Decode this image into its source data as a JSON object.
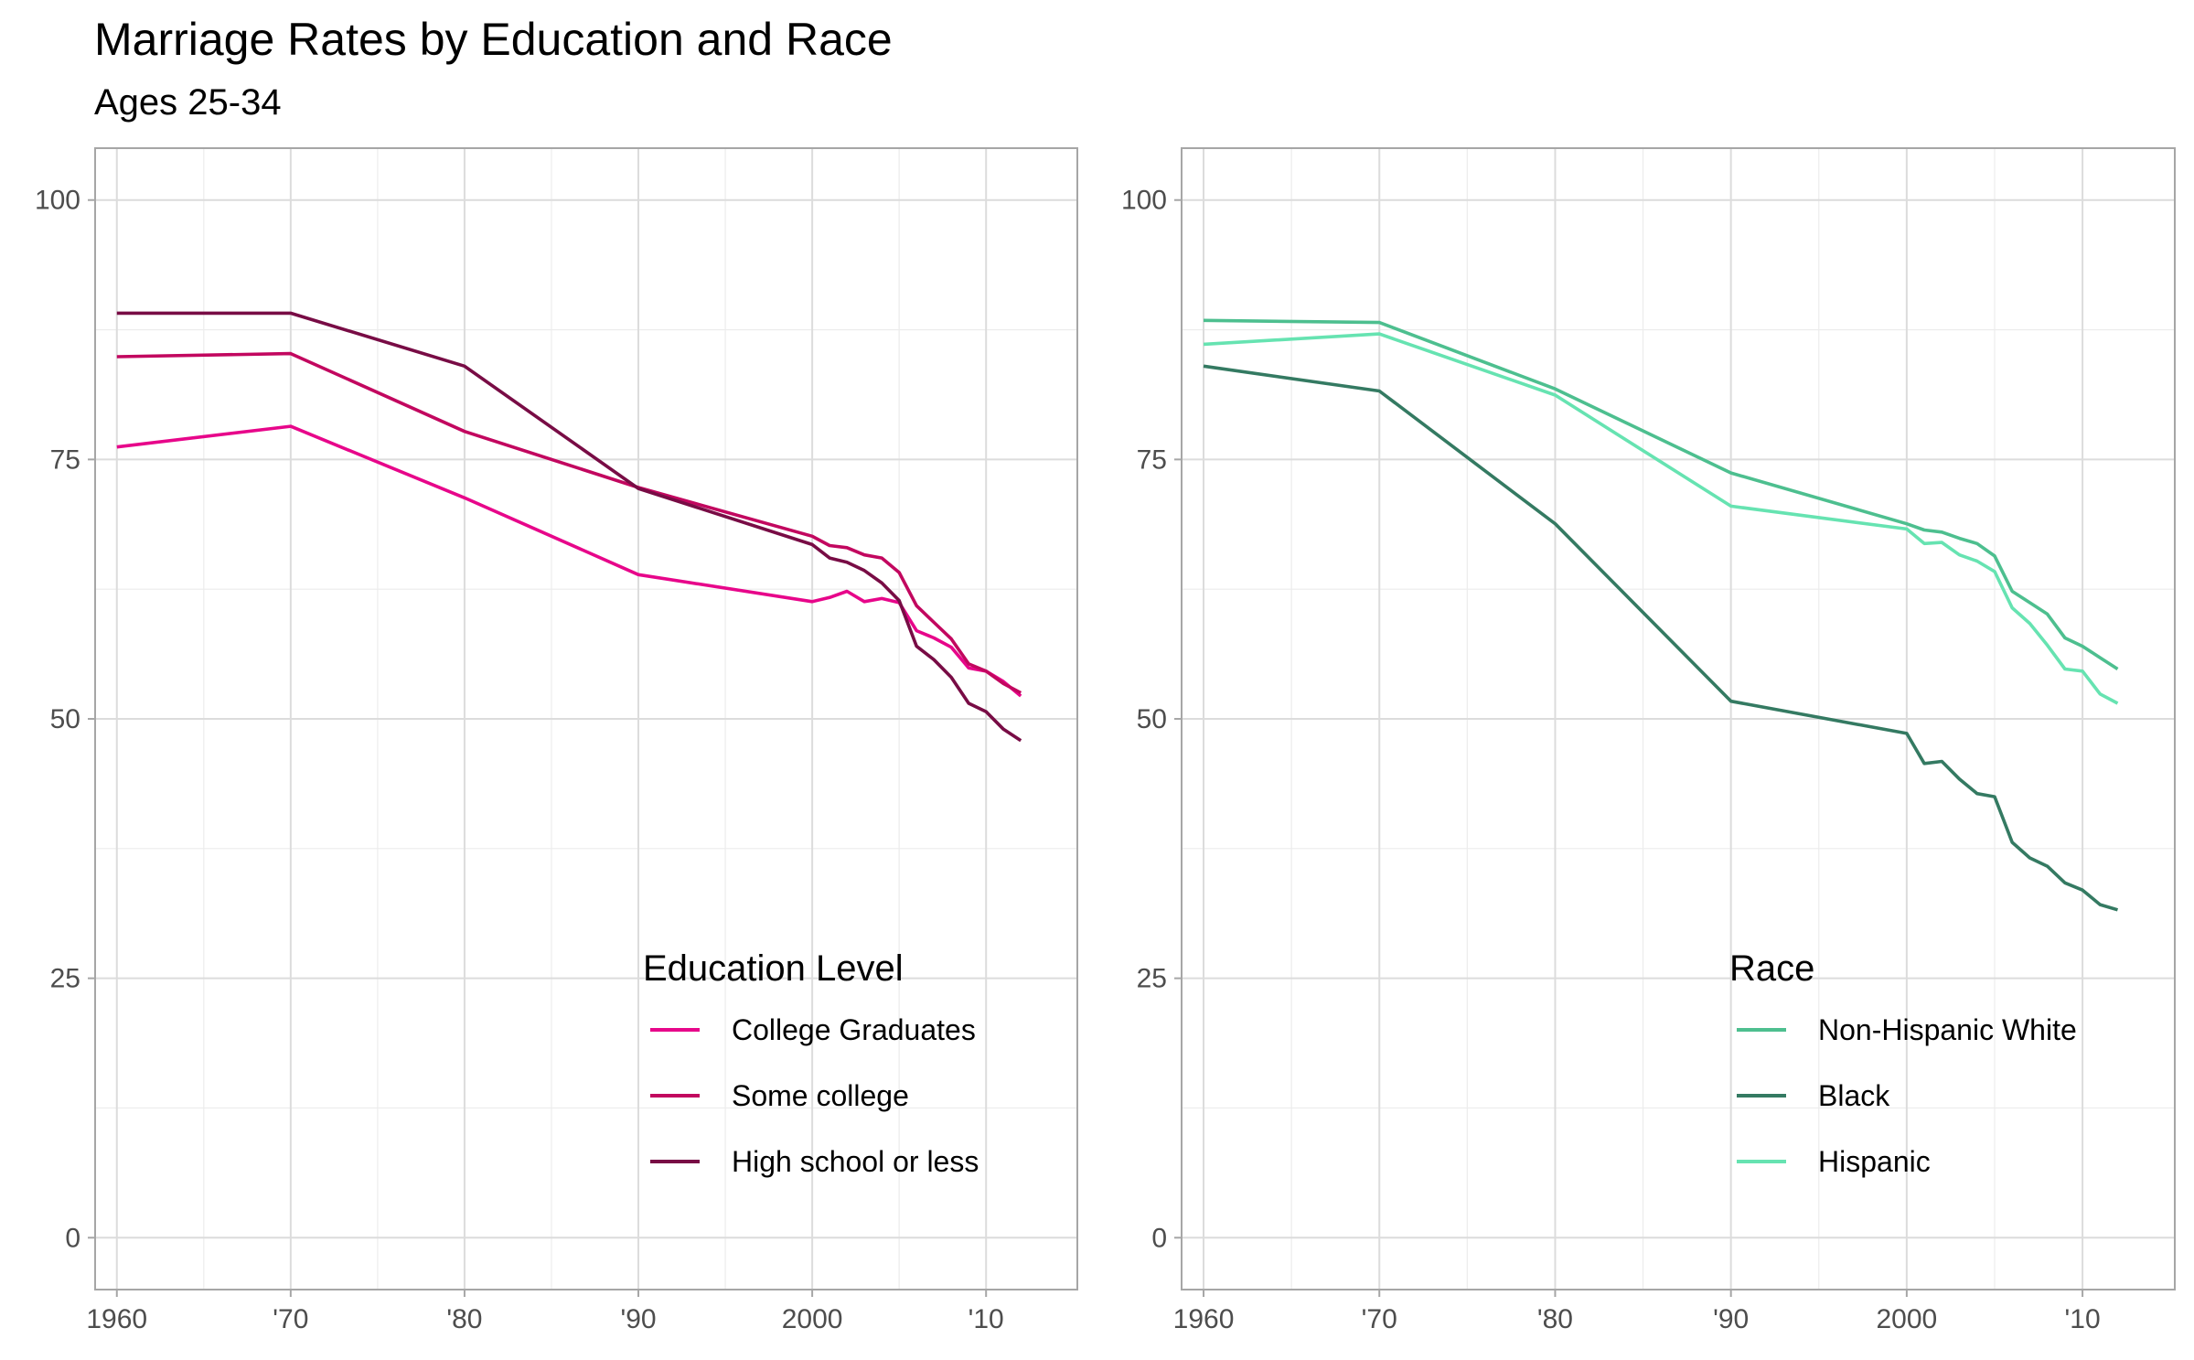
{
  "title": "Marriage Rates by Education and Race",
  "subtitle": "Ages 25-34",
  "colors": {
    "grid_major": "#dcdcdc",
    "grid_minor": "#ececec",
    "panel_border": "#a6a6a6",
    "tick_label": "#4d4d4d"
  },
  "chart_data": [
    {
      "type": "line",
      "panel": "left",
      "xlim": [
        1958.75,
        2015.25
      ],
      "ylim": [
        -5,
        105
      ],
      "x_major_ticks": [
        1960,
        1970,
        1980,
        1990,
        2000,
        2010
      ],
      "x_tick_labels": [
        "1960",
        "'70",
        "'80",
        "'90",
        "2000",
        "'10"
      ],
      "y_major_ticks": [
        0,
        25,
        50,
        75,
        100
      ],
      "y_tick_labels": [
        "0",
        "25",
        "50",
        "75",
        "100"
      ],
      "grid": true,
      "legend_title": "Education Level",
      "legend_position": "bottom-right",
      "series": [
        {
          "name": "College Graduates",
          "color": "#e7068a",
          "x": [
            1960,
            1970,
            1980,
            1990,
            2000,
            2001,
            2002,
            2003,
            2004,
            2005,
            2006,
            2007,
            2008,
            2009,
            2010,
            2011,
            2012
          ],
          "values": [
            76.2,
            78.2,
            71.3,
            63.9,
            61.3,
            61.7,
            62.3,
            61.3,
            61.6,
            61.2,
            58.5,
            57.8,
            56.9,
            54.9,
            54.6,
            53.6,
            52.2
          ]
        },
        {
          "name": "Some college",
          "color": "#c2075f",
          "x": [
            1960,
            1970,
            1980,
            1990,
            2000,
            2001,
            2002,
            2003,
            2004,
            2005,
            2006,
            2007,
            2008,
            2009,
            2010,
            2011,
            2012
          ],
          "values": [
            84.9,
            85.2,
            77.7,
            72.3,
            67.6,
            66.7,
            66.5,
            65.8,
            65.5,
            64.1,
            60.9,
            59.3,
            57.7,
            55.3,
            54.6,
            53.4,
            52.5
          ]
        },
        {
          "name": "High school or less",
          "color": "#780c45",
          "x": [
            1960,
            1970,
            1980,
            1990,
            2000,
            2001,
            2002,
            2003,
            2004,
            2005,
            2006,
            2007,
            2008,
            2009,
            2010,
            2011,
            2012
          ],
          "values": [
            89.1,
            89.1,
            84.0,
            72.2,
            66.8,
            65.5,
            65.1,
            64.3,
            63.1,
            61.4,
            57.0,
            55.7,
            54.0,
            51.5,
            50.7,
            49.0,
            47.9
          ]
        }
      ]
    },
    {
      "type": "line",
      "panel": "right",
      "xlim": [
        1958.75,
        2015.25
      ],
      "ylim": [
        -5,
        105
      ],
      "x_major_ticks": [
        1960,
        1970,
        1980,
        1990,
        2000,
        2010
      ],
      "x_tick_labels": [
        "1960",
        "'70",
        "'80",
        "'90",
        "2000",
        "'10"
      ],
      "y_major_ticks": [
        0,
        25,
        50,
        75,
        100
      ],
      "y_tick_labels": [
        "0",
        "25",
        "50",
        "75",
        "100"
      ],
      "grid": true,
      "legend_title": "Race",
      "legend_position": "bottom-right",
      "series": [
        {
          "name": "Non-Hispanic White",
          "color": "#4dbf8f",
          "x": [
            1960,
            1970,
            1980,
            1990,
            2000,
            2001,
            2002,
            2003,
            2004,
            2005,
            2006,
            2007,
            2008,
            2009,
            2010,
            2011,
            2012
          ],
          "values": [
            88.4,
            88.2,
            81.8,
            73.7,
            68.8,
            68.2,
            68.0,
            67.4,
            66.9,
            65.7,
            62.3,
            61.2,
            60.1,
            57.8,
            57.0,
            55.9,
            54.8
          ]
        },
        {
          "name": "Black",
          "color": "#347a62",
          "x": [
            1960,
            1970,
            1980,
            1990,
            2000,
            2001,
            2002,
            2003,
            2004,
            2005,
            2006,
            2007,
            2008,
            2009,
            2010,
            2011,
            2012
          ],
          "values": [
            84.0,
            81.6,
            68.8,
            51.7,
            48.6,
            45.7,
            45.9,
            44.2,
            42.8,
            42.5,
            38.1,
            36.6,
            35.8,
            34.2,
            33.5,
            32.1,
            31.6
          ]
        },
        {
          "name": "Hispanic",
          "color": "#66e3b1",
          "x": [
            1960,
            1970,
            1980,
            1990,
            2000,
            2001,
            2002,
            2003,
            2004,
            2005,
            2006,
            2007,
            2008,
            2009,
            2010,
            2011,
            2012
          ],
          "values": [
            86.1,
            87.1,
            81.2,
            70.5,
            68.3,
            66.9,
            67.0,
            65.8,
            65.2,
            64.2,
            60.7,
            59.2,
            57.1,
            54.8,
            54.6,
            52.4,
            51.5
          ]
        }
      ]
    }
  ]
}
